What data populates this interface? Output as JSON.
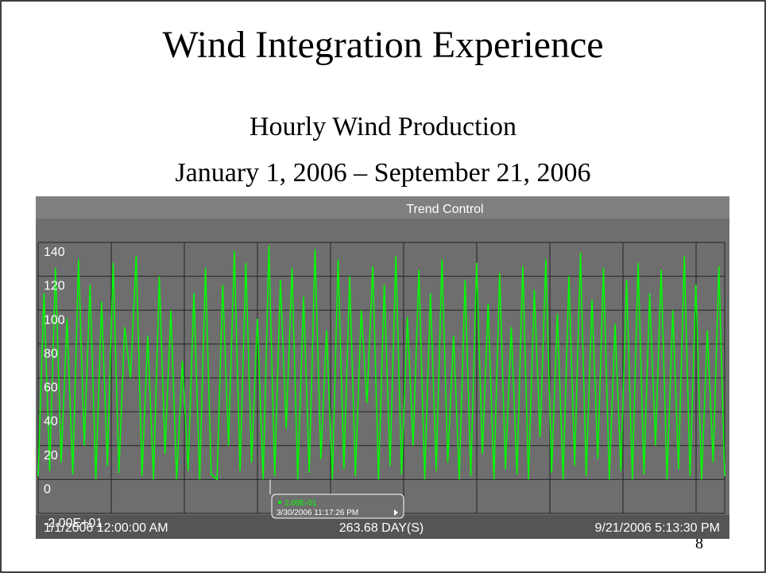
{
  "slide": {
    "title": "Wind Integration Experience",
    "subtitle": "Hourly Wind Production",
    "date_range": "January 1, 2006 – September 21, 2006",
    "page_number": "8"
  },
  "chart_data": {
    "type": "line",
    "title": "Trend Control",
    "start_label": "1/1/2006 12:00:00 AM",
    "span_label": "263.68 DAY(S)",
    "end_label": "9/21/2006 5:13:30 PM",
    "ylim": [
      -20,
      140
    ],
    "yticks": [
      {
        "value": -20,
        "label": "-2.00E+01"
      },
      0,
      20,
      40,
      60,
      80,
      100,
      120,
      140
    ],
    "grid": true,
    "tooltip": {
      "value_label": "2.00E-01",
      "time": "3/30/2006 11:17:26 PM"
    },
    "series": [
      {
        "name": "Wind Production",
        "color": "#00ff00",
        "values": [
          2,
          110,
          5,
          125,
          10,
          95,
          3,
          130,
          20,
          115,
          0,
          105,
          8,
          128,
          4,
          90,
          60,
          132,
          2,
          85,
          0,
          120,
          15,
          100,
          0,
          70,
          5,
          110,
          0,
          125,
          3,
          0,
          115,
          20,
          135,
          5,
          128,
          10,
          95,
          0,
          138,
          2,
          118,
          30,
          125,
          0,
          108,
          4,
          136,
          12,
          88,
          0,
          130,
          6,
          120,
          2,
          100,
          45,
          126,
          0,
          115,
          8,
          132,
          3,
          96,
          20,
          124,
          0,
          110,
          5,
          130,
          10,
          85,
          0,
          118,
          2,
          128,
          15,
          104,
          0,
          122,
          6,
          90,
          3,
          126,
          0,
          112,
          25,
          130,
          4,
          98,
          0,
          120,
          8,
          134,
          2,
          106,
          12,
          125,
          0,
          92,
          5,
          118,
          0,
          128,
          3,
          110,
          20,
          124,
          0,
          100,
          6,
          132,
          2,
          115,
          0,
          88,
          10,
          126,
          2
        ]
      }
    ]
  }
}
